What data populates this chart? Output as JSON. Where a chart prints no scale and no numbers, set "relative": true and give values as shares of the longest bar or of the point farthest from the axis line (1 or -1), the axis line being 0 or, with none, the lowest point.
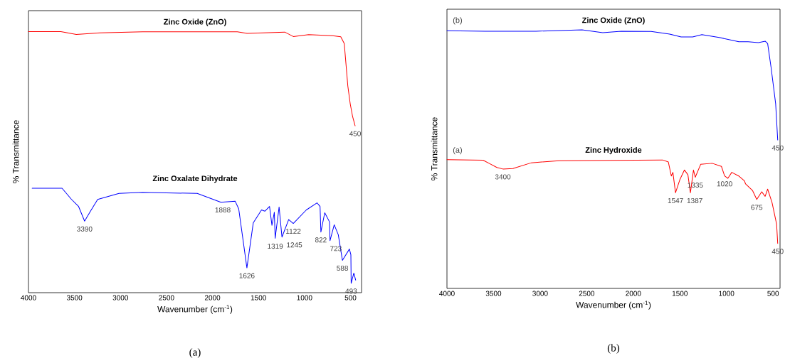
{
  "chart_data": [
    {
      "type": "line",
      "relative": true,
      "xlabel": "Wavenumber (cm$^{-1}$)",
      "ylabel": "% Transmittance",
      "xlim": [
        4000,
        380
      ],
      "xticks": [
        4000,
        3500,
        3000,
        2500,
        2000,
        1500,
        1000,
        500
      ],
      "series": [
        {
          "name": "Zinc Oxide (ZnO)",
          "color": "#ff0000",
          "x": [
            4000,
            3648,
            3480,
            3223,
            2759,
            1730,
            1624,
            1215,
            1122,
            955,
            696,
            606,
            568,
            529,
            503,
            477,
            450
          ],
          "values": [
            1.0,
            1.0,
            0.989,
            0.995,
            0.999,
            0.999,
            0.993,
            0.998,
            0.981,
            0.988,
            0.984,
            0.98,
            0.954,
            0.791,
            0.723,
            0.674,
            0.639
          ]
        },
        {
          "name": "Zinc Oxalate Dihydrate",
          "color": "#0000ff",
          "x": [
            3960,
            3635,
            3532,
            3455,
            3390,
            3326,
            3248,
            3016,
            2759,
            2166,
            1908,
            1888,
            1753,
            1715,
            1676,
            1626,
            1557,
            1467,
            1431,
            1380,
            1354,
            1328,
            1319,
            1276,
            1245,
            1172,
            1122,
            980,
            864,
            831,
            822,
            780,
            728,
            723,
            677,
            633,
            588,
            512,
            496,
            493,
            464,
            444
          ],
          "values": [
            0.4,
            0.4,
            0.357,
            0.33,
            0.274,
            0.312,
            0.357,
            0.38,
            0.384,
            0.38,
            0.346,
            0.347,
            0.35,
            0.321,
            0.222,
            0.095,
            0.267,
            0.317,
            0.312,
            0.33,
            0.258,
            0.308,
            0.208,
            0.328,
            0.213,
            0.28,
            0.265,
            0.317,
            0.344,
            0.33,
            0.232,
            0.306,
            0.271,
            0.199,
            0.26,
            0.222,
            0.124,
            0.167,
            0.145,
            0.036,
            0.075,
            0.048
          ]
        }
      ],
      "annotations": [
        {
          "text": "450",
          "x": 450,
          "y": 0.639
        },
        {
          "text": "3390",
          "x": 3390,
          "y": 0.274
        },
        {
          "text": "1888",
          "x": 1888,
          "y": 0.347
        },
        {
          "text": "1626",
          "x": 1626,
          "y": 0.095
        },
        {
          "text": "1319",
          "x": 1319,
          "y": 0.208
        },
        {
          "text": "1245",
          "x": 1245,
          "y": 0.213
        },
        {
          "text": "1122",
          "x": 1122,
          "y": 0.265
        },
        {
          "text": "822",
          "x": 822,
          "y": 0.232
        },
        {
          "text": "723",
          "x": 723,
          "y": 0.199
        },
        {
          "text": "588",
          "x": 588,
          "y": 0.124
        },
        {
          "text": "493",
          "x": 493,
          "y": 0.036
        },
        "(a)"
      ]
    },
    {
      "type": "line",
      "relative": true,
      "xlabel": "Wavenumber (cm$^{-1}$)",
      "ylabel": "% Transmittance",
      "xlim": [
        4000,
        425
      ],
      "xticks": [
        4000,
        3500,
        3000,
        2500,
        2000,
        1500,
        1000,
        500
      ],
      "series": [
        {
          "name": "Zinc Oxide (ZnO)",
          "color": "#0000ff",
          "x": [
            4000,
            3588,
            3044,
            2550,
            2328,
            2130,
            1809,
            1610,
            1487,
            1363,
            1264,
            1067,
            867,
            768,
            657,
            583,
            558,
            521,
            472,
            450
          ],
          "values": [
            0.997,
            0.995,
            0.995,
            1.0,
            0.989,
            0.995,
            0.994,
            0.984,
            0.973,
            0.973,
            0.982,
            0.97,
            0.954,
            0.954,
            0.951,
            0.956,
            0.947,
            0.854,
            0.714,
            0.574
          ]
        },
        {
          "name": "Zinc Hydroxide",
          "color": "#ff0000",
          "x": [
            4000,
            3612,
            3538,
            3464,
            3400,
            3292,
            3094,
            2798,
            1686,
            1624,
            1592,
            1575,
            1547,
            1500,
            1451,
            1414,
            1387,
            1354,
            1335,
            1277,
            1153,
            1054,
            1020,
            985,
            943,
            869,
            807,
            795,
            721,
            675,
            622,
            585,
            558,
            511,
            462,
            450
          ],
          "values": [
            0.498,
            0.496,
            0.482,
            0.468,
            0.462,
            0.464,
            0.486,
            0.494,
            0.497,
            0.489,
            0.435,
            0.449,
            0.37,
            0.421,
            0.458,
            0.44,
            0.37,
            0.458,
            0.43,
            0.48,
            0.484,
            0.472,
            0.435,
            0.426,
            0.449,
            0.435,
            0.416,
            0.404,
            0.379,
            0.344,
            0.374,
            0.356,
            0.384,
            0.332,
            0.249,
            0.174
          ]
        }
      ],
      "annotations": [
        "(b)",
        "(a)",
        {
          "text": "450",
          "x": 450,
          "y": 0.574
        },
        {
          "text": "3400",
          "x": 3400,
          "y": 0.462
        },
        {
          "text": "1547",
          "x": 1547,
          "y": 0.37
        },
        {
          "text": "1387",
          "x": 1387,
          "y": 0.37
        },
        {
          "text": "1335",
          "x": 1335,
          "y": 0.43
        },
        {
          "text": "1020",
          "x": 1020,
          "y": 0.435
        },
        {
          "text": "675",
          "x": 675,
          "y": 0.344
        },
        {
          "text": "450",
          "x": 450,
          "y": 0.174
        },
        "(b)"
      ]
    }
  ]
}
